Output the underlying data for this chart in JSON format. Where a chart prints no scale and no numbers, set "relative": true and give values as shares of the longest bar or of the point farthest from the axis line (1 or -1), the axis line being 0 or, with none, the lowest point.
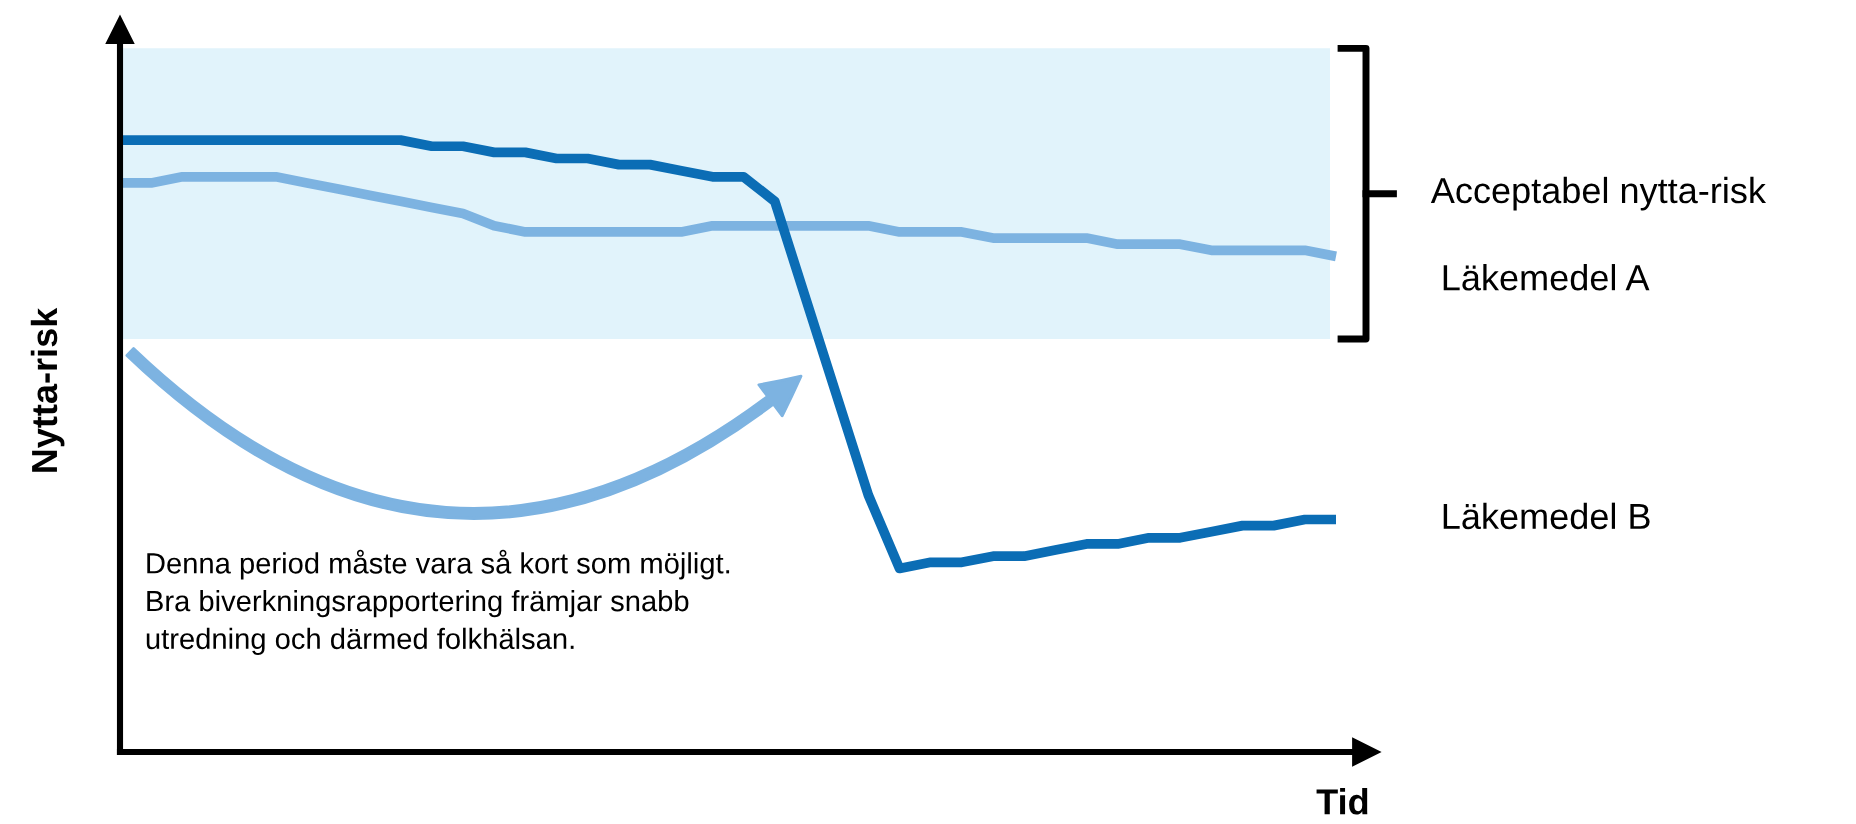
{
  "chart_data": {
    "type": "line",
    "relative": true,
    "xlabel": "Tid",
    "ylabel": "Nytta-risk",
    "tick_labels": false,
    "categories": [
      null,
      null,
      null,
      null,
      null,
      null,
      null,
      null,
      null,
      null,
      null,
      null,
      null,
      null,
      null,
      null,
      null,
      null,
      null,
      null,
      null,
      null,
      null,
      null,
      null,
      null,
      null,
      null,
      null,
      null,
      null,
      null,
      null,
      null,
      null,
      null,
      null,
      null,
      null,
      null
    ],
    "series": [
      {
        "name": "Läkemedel A",
        "color": "#7db3e1",
        "values": [
          0.93,
          0.93,
          0.94,
          0.94,
          0.94,
          0.94,
          0.93,
          0.92,
          0.91,
          0.9,
          0.89,
          0.88,
          0.86,
          0.85,
          0.85,
          0.85,
          0.85,
          0.85,
          0.85,
          0.86,
          0.86,
          0.86,
          0.86,
          0.86,
          0.86,
          0.85,
          0.85,
          0.85,
          0.84,
          0.84,
          0.84,
          0.84,
          0.83,
          0.83,
          0.83,
          0.82,
          0.82,
          0.82,
          0.82,
          0.81
        ]
      },
      {
        "name": "Läkemedel B",
        "color": "#0b6db5",
        "values": [
          1,
          1,
          1,
          1,
          1,
          1,
          1,
          1,
          1,
          1,
          0.99,
          0.99,
          0.98,
          0.98,
          0.97,
          0.97,
          0.96,
          0.96,
          0.95,
          0.94,
          0.94,
          0.9,
          0.74,
          0.58,
          0.42,
          0.3,
          0.31,
          0.31,
          0.32,
          0.32,
          0.33,
          0.34,
          0.34,
          0.35,
          0.35,
          0.36,
          0.37,
          0.37,
          0.38,
          0.38
        ]
      }
    ],
    "bands": [
      {
        "axis": "y",
        "from": 0.675,
        "to": 1.15,
        "label": "Acceptabel nytta-risk",
        "color": "#e1f3fb"
      }
    ],
    "annotations": [
      "Denna period måste vara så kort som möjligt.\nBra biverkningsrapportering främjar snabb\nutredning och därmed folkhälsan."
    ]
  }
}
